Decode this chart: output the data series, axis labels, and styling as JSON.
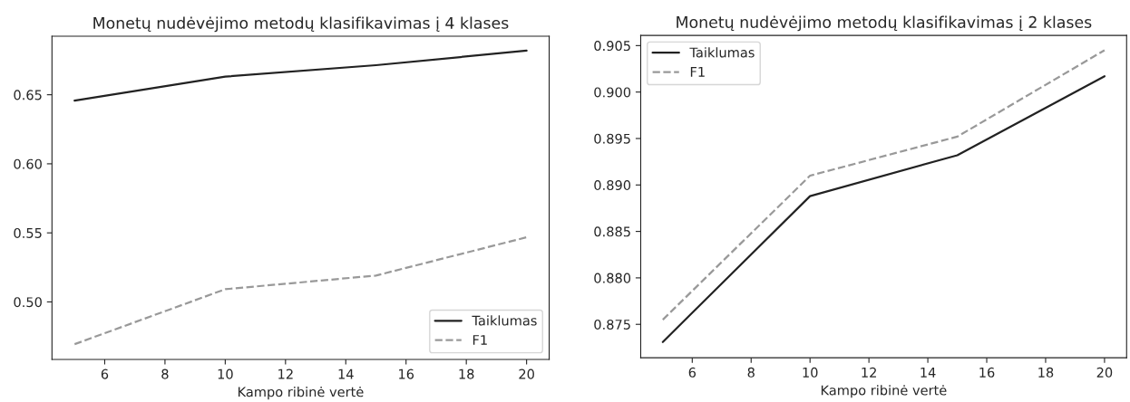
{
  "chart_data": [
    {
      "type": "line",
      "title": "Monetų nudėvėjimo metodų klasifikavimas į 4 klases",
      "xlabel": "Kampo ribinė vertė",
      "x": [
        5,
        10,
        15,
        20
      ],
      "xlim": [
        4.25,
        20.75
      ],
      "xticks": [
        6,
        8,
        10,
        12,
        14,
        16,
        18,
        20
      ],
      "ylim": [
        0.4584,
        0.6924
      ],
      "yticks": [
        {
          "value": 0.5,
          "label": "0.50"
        },
        {
          "value": 0.55,
          "label": "0.55"
        },
        {
          "value": 0.6,
          "label": "0.60"
        },
        {
          "value": 0.65,
          "label": "0.65"
        }
      ],
      "legend": "bottom right",
      "grid": false,
      "marker": "none",
      "series": [
        {
          "name": "Taiklumas",
          "color": "#222222",
          "line_style": "solid",
          "values": [
            0.6458,
            0.6631,
            0.6714,
            0.6819
          ]
        },
        {
          "name": "F1",
          "color": "#999999",
          "line_style": "dashed",
          "values": [
            0.4694,
            0.5092,
            0.5191,
            0.5468
          ]
        }
      ]
    },
    {
      "type": "line",
      "title": "Monetų nudėvėjimo metodų klasifikavimas į 2 klases",
      "xlabel": "Kampo ribinė vertė",
      "x": [
        5,
        10,
        15,
        20
      ],
      "xlim": [
        4.25,
        20.75
      ],
      "xticks": [
        6,
        8,
        10,
        12,
        14,
        16,
        18,
        20
      ],
      "ylim": [
        0.8714,
        0.9061
      ],
      "yticks": [
        0.875,
        {
          "value": 0.88,
          "label": "0.880"
        },
        0.885,
        {
          "value": 0.89,
          "label": "0.890"
        },
        0.895,
        {
          "value": 0.9,
          "label": "0.900"
        },
        0.905
      ],
      "legend": "top left",
      "grid": false,
      "marker": "none",
      "series": [
        {
          "name": "Taiklumas",
          "color": "#222222",
          "line_style": "solid",
          "values": [
            0.8731,
            0.8888,
            0.8932,
            0.9017
          ]
        },
        {
          "name": "F1",
          "color": "#999999",
          "line_style": "dashed",
          "values": [
            0.8755,
            0.891,
            0.8952,
            0.9045
          ]
        }
      ]
    }
  ]
}
